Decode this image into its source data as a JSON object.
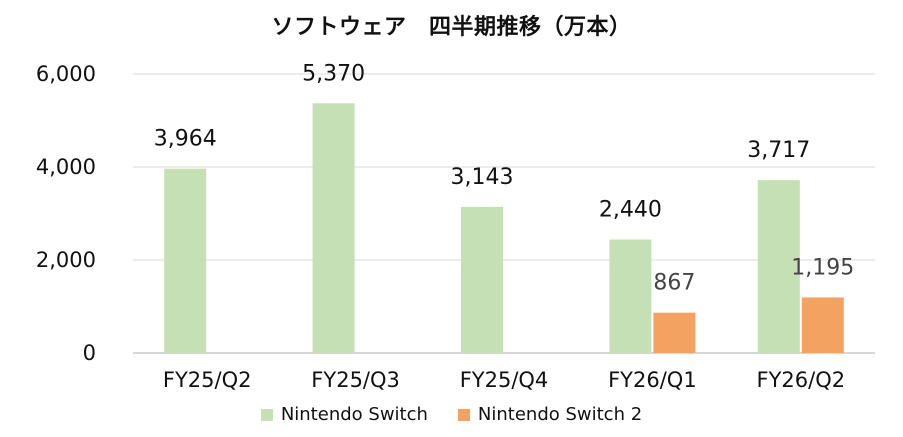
{
  "chart_data": {
    "type": "bar",
    "title": "ソフトウェア　四半期推移（万本）",
    "categories": [
      "FY25/Q2",
      "FY25/Q3",
      "FY25/Q4",
      "FY26/Q1",
      "FY26/Q2"
    ],
    "series": [
      {
        "name": "Nintendo Switch",
        "color": "#c5e0b4",
        "values": [
          3964,
          5370,
          3143,
          2440,
          3717
        ],
        "labels": [
          "3,964",
          "5,370",
          "3,143",
          "2,440",
          "3,717"
        ]
      },
      {
        "name": "Nintendo Switch 2",
        "color": "#f4a261",
        "values": [
          null,
          null,
          null,
          867,
          1195
        ],
        "labels": [
          null,
          null,
          null,
          "867",
          "1,195"
        ]
      }
    ],
    "ylim": [
      0,
      6000
    ],
    "yticks": [
      0,
      2000,
      4000,
      6000
    ],
    "ytick_labels": [
      "0",
      "2,000",
      "4,000",
      "6,000"
    ],
    "grid": true,
    "legend_position": "bottom"
  }
}
